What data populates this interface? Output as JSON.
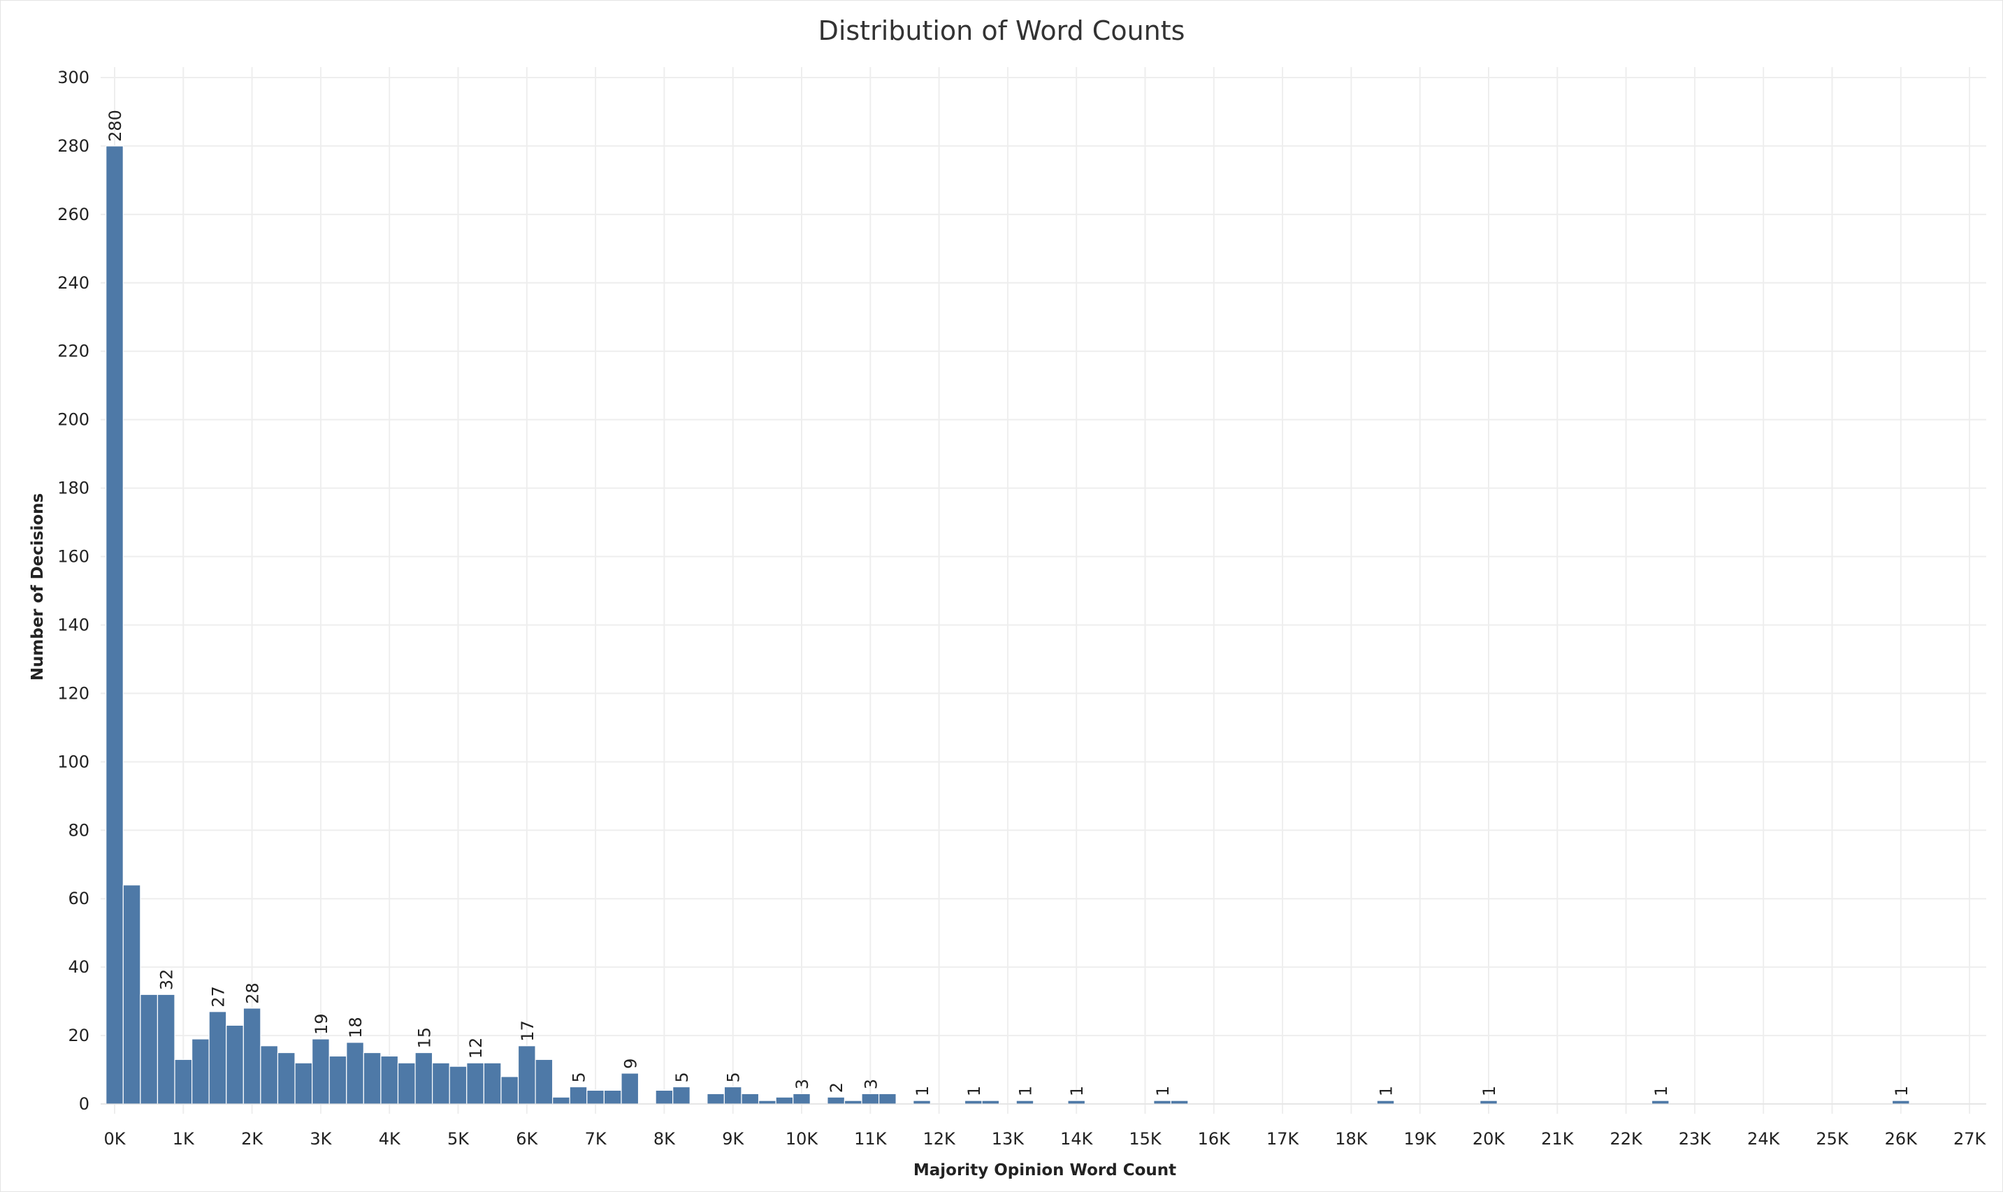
{
  "chart_data": {
    "type": "bar",
    "title": "Distribution of Word Counts",
    "xlabel": "Majority Opinion Word Count",
    "ylabel": "Number of Decisions",
    "bin_width": 250,
    "xlim": [
      -250,
      27500
    ],
    "ylim": [
      0,
      300
    ],
    "y_ticks": [
      0,
      20,
      40,
      60,
      80,
      100,
      120,
      140,
      160,
      180,
      200,
      220,
      240,
      260,
      280,
      300
    ],
    "x_ticks": [
      0,
      1000,
      2000,
      3000,
      4000,
      5000,
      6000,
      7000,
      8000,
      9000,
      10000,
      11000,
      12000,
      13000,
      14000,
      15000,
      16000,
      17000,
      18000,
      19000,
      20000,
      21000,
      22000,
      23000,
      24000,
      25000,
      26000,
      27000
    ],
    "x_tick_labels": [
      "0K",
      "1K",
      "2K",
      "3K",
      "4K",
      "5K",
      "6K",
      "7K",
      "8K",
      "9K",
      "10K",
      "11K",
      "12K",
      "13K",
      "14K",
      "15K",
      "16K",
      "17K",
      "18K",
      "19K",
      "20K",
      "21K",
      "22K",
      "23K",
      "24K",
      "25K",
      "26K",
      "27K"
    ],
    "bar_color": "#4e79a7",
    "grid": true,
    "bars": [
      {
        "x": 0,
        "value": 280,
        "label": "280"
      },
      {
        "x": 250,
        "value": 64,
        "label": ""
      },
      {
        "x": 500,
        "value": 32,
        "label": ""
      },
      {
        "x": 750,
        "value": 32,
        "label": "32"
      },
      {
        "x": 1000,
        "value": 13,
        "label": ""
      },
      {
        "x": 1250,
        "value": 19,
        "label": ""
      },
      {
        "x": 1500,
        "value": 27,
        "label": "27"
      },
      {
        "x": 1750,
        "value": 23,
        "label": ""
      },
      {
        "x": 2000,
        "value": 28,
        "label": "28"
      },
      {
        "x": 2250,
        "value": 17,
        "label": ""
      },
      {
        "x": 2500,
        "value": 15,
        "label": ""
      },
      {
        "x": 2750,
        "value": 12,
        "label": ""
      },
      {
        "x": 3000,
        "value": 19,
        "label": "19"
      },
      {
        "x": 3250,
        "value": 14,
        "label": ""
      },
      {
        "x": 3500,
        "value": 18,
        "label": "18"
      },
      {
        "x": 3750,
        "value": 15,
        "label": ""
      },
      {
        "x": 4000,
        "value": 14,
        "label": ""
      },
      {
        "x": 4250,
        "value": 12,
        "label": ""
      },
      {
        "x": 4500,
        "value": 15,
        "label": "15"
      },
      {
        "x": 4750,
        "value": 12,
        "label": ""
      },
      {
        "x": 5000,
        "value": 11,
        "label": ""
      },
      {
        "x": 5250,
        "value": 12,
        "label": "12"
      },
      {
        "x": 5500,
        "value": 12,
        "label": ""
      },
      {
        "x": 5750,
        "value": 8,
        "label": ""
      },
      {
        "x": 6000,
        "value": 17,
        "label": "17"
      },
      {
        "x": 6250,
        "value": 13,
        "label": ""
      },
      {
        "x": 6500,
        "value": 2,
        "label": ""
      },
      {
        "x": 6750,
        "value": 5,
        "label": "5"
      },
      {
        "x": 7000,
        "value": 4,
        "label": ""
      },
      {
        "x": 7250,
        "value": 4,
        "label": ""
      },
      {
        "x": 7500,
        "value": 9,
        "label": "9"
      },
      {
        "x": 8000,
        "value": 4,
        "label": ""
      },
      {
        "x": 8250,
        "value": 5,
        "label": "5"
      },
      {
        "x": 8750,
        "value": 3,
        "label": ""
      },
      {
        "x": 9000,
        "value": 5,
        "label": "5"
      },
      {
        "x": 9250,
        "value": 3,
        "label": ""
      },
      {
        "x": 9500,
        "value": 1,
        "label": ""
      },
      {
        "x": 9750,
        "value": 2,
        "label": ""
      },
      {
        "x": 10000,
        "value": 3,
        "label": "3"
      },
      {
        "x": 10500,
        "value": 2,
        "label": "2"
      },
      {
        "x": 10750,
        "value": 1,
        "label": ""
      },
      {
        "x": 11000,
        "value": 3,
        "label": "3"
      },
      {
        "x": 11250,
        "value": 3,
        "label": ""
      },
      {
        "x": 11750,
        "value": 1,
        "label": "1"
      },
      {
        "x": 12500,
        "value": 1,
        "label": "1"
      },
      {
        "x": 12750,
        "value": 1,
        "label": ""
      },
      {
        "x": 13250,
        "value": 1,
        "label": "1"
      },
      {
        "x": 14000,
        "value": 1,
        "label": "1"
      },
      {
        "x": 15250,
        "value": 1,
        "label": "1"
      },
      {
        "x": 15500,
        "value": 1,
        "label": ""
      },
      {
        "x": 18500,
        "value": 1,
        "label": "1"
      },
      {
        "x": 20000,
        "value": 1,
        "label": "1"
      },
      {
        "x": 22500,
        "value": 1,
        "label": "1"
      },
      {
        "x": 26000,
        "value": 1,
        "label": "1"
      }
    ]
  }
}
